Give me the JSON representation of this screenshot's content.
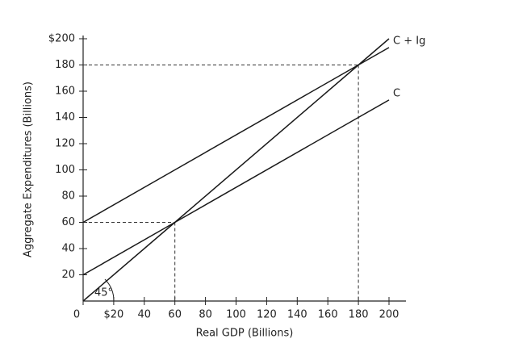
{
  "chart_data": {
    "type": "line",
    "x_label": "Real GDP (Billions)",
    "y_label": "Aggregate Expenditures (Billions)",
    "x": [
      0,
      60,
      180,
      200
    ],
    "series": [
      {
        "values": [
          0,
          60,
          180,
          200
        ],
        "color": "#1a1a1a"
      },
      {
        "name": "C",
        "values": [
          20,
          60,
          140,
          153.3
        ],
        "color": "#1a1a1a"
      },
      {
        "name": "C + Ig",
        "values": [
          60,
          100,
          180,
          193.3
        ],
        "color": "#1a1a1a"
      }
    ],
    "annotation": "45°",
    "guides": [
      {
        "x": 60,
        "y": 60
      },
      {
        "x": 180,
        "y": 180
      }
    ],
    "xlim": [
      0,
      200
    ],
    "ylim": [
      0,
      200
    ],
    "xticks": [
      0,
      {
        "value": 20,
        "label": "$20"
      },
      40,
      60,
      80,
      100,
      120,
      140,
      160,
      180,
      200
    ],
    "yticks": [
      20,
      40,
      60,
      80,
      100,
      120,
      140,
      160,
      180,
      {
        "value": 200,
        "label": "$200"
      }
    ],
    "grid": false
  }
}
